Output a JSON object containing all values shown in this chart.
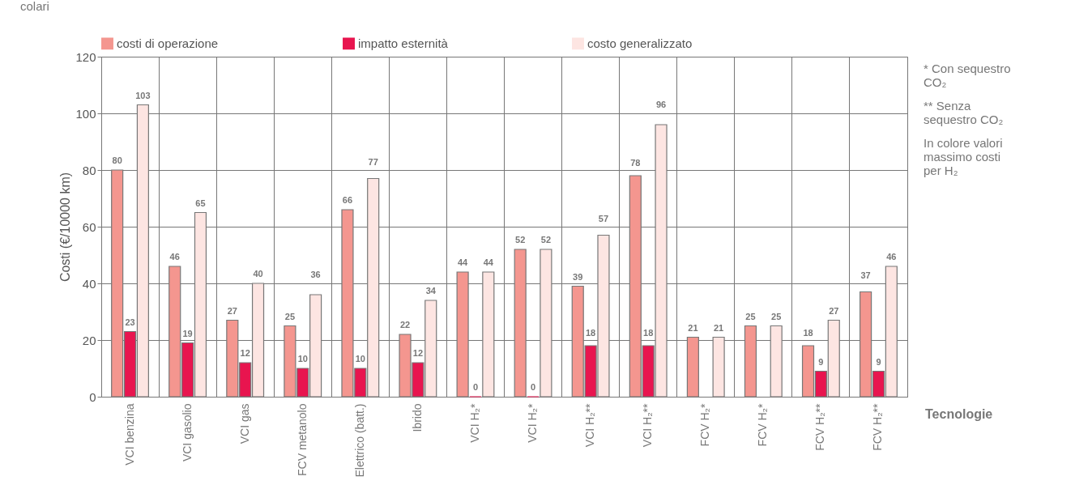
{
  "chart_data": {
    "type": "bar",
    "ylabel": "Costi (€/10000 km)",
    "xlabel": "Tecnologie",
    "categories": [
      "VCI benzina",
      "VCI gasolio",
      "VCI gas",
      "FCV metanolo",
      "Elettrico (batt.)",
      "Ibrido",
      "VCI H₂*",
      "VCI H₂*",
      "VCI H₂**",
      "VCI H₂**",
      "FCV H₂*",
      "FCV H₂*",
      "FCV H₂**",
      "FCV H₂**"
    ],
    "series": [
      {
        "name": "costi di operazione",
        "color": "#f4968f",
        "values": [
          80,
          46,
          27,
          25,
          66,
          22,
          44,
          52,
          39,
          78,
          21,
          25,
          18,
          37
        ]
      },
      {
        "name": "impatto esternità",
        "color": "#e8154f",
        "values": [
          23,
          19,
          12,
          10,
          10,
          12,
          0,
          0,
          18,
          18,
          null,
          null,
          9,
          9
        ]
      },
      {
        "name": "costo generalizzato",
        "color": "#fde5e2",
        "values": [
          103,
          65,
          40,
          36,
          77,
          34,
          44,
          52,
          57,
          96,
          21,
          25,
          27,
          46
        ]
      }
    ],
    "ylim": [
      0,
      120
    ],
    "yticks": [
      0,
      20,
      40,
      60,
      80,
      100,
      120
    ],
    "grid": true,
    "legend": "top",
    "data_labels": true,
    "annotations": [
      "colari",
      "* Con sequestro CO₂",
      "** Senza sequestro CO₂",
      "In colore valori massimo costi per H₂"
    ]
  }
}
